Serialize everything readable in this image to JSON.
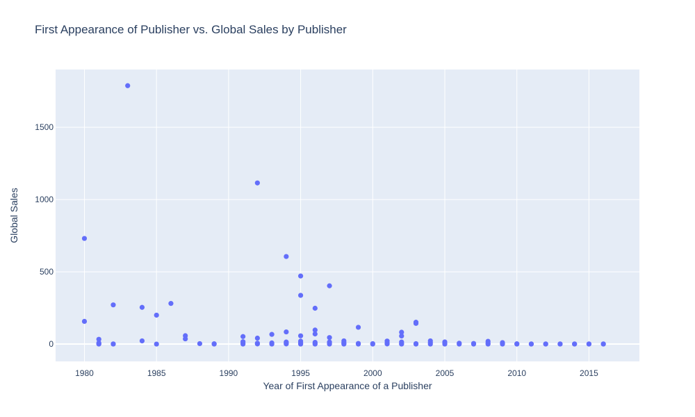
{
  "chart_data": {
    "type": "scatter",
    "title": "First Appearance of Publisher vs. Global Sales by Publisher",
    "xlabel": "Year of First Appearance of a Publisher",
    "ylabel": "Global Sales",
    "xlim": [
      1978,
      2018.5
    ],
    "ylim": [
      -120,
      1900
    ],
    "x_ticks": [
      1980,
      1985,
      1990,
      1995,
      2000,
      2005,
      2010,
      2015
    ],
    "y_ticks": [
      0,
      500,
      1000,
      1500
    ],
    "grid": true,
    "legend": "none",
    "colors": {
      "marker": "#636efa",
      "plot_bg": "#e5ecf6",
      "grid": "#ffffff",
      "text": "#2a3f5f"
    },
    "points": [
      {
        "x": 1980,
        "y": 731
      },
      {
        "x": 1980,
        "y": 157
      },
      {
        "x": 1981,
        "y": 33
      },
      {
        "x": 1981,
        "y": 8
      },
      {
        "x": 1981,
        "y": 2
      },
      {
        "x": 1981,
        "y": 0
      },
      {
        "x": 1982,
        "y": 271
      },
      {
        "x": 1982,
        "y": 1
      },
      {
        "x": 1982,
        "y": 0
      },
      {
        "x": 1983,
        "y": 1788
      },
      {
        "x": 1984,
        "y": 254
      },
      {
        "x": 1984,
        "y": 22
      },
      {
        "x": 1985,
        "y": 200
      },
      {
        "x": 1985,
        "y": 0
      },
      {
        "x": 1986,
        "y": 281
      },
      {
        "x": 1987,
        "y": 58
      },
      {
        "x": 1987,
        "y": 36
      },
      {
        "x": 1988,
        "y": 3
      },
      {
        "x": 1989,
        "y": 2
      },
      {
        "x": 1989,
        "y": 0
      },
      {
        "x": 1991,
        "y": 52
      },
      {
        "x": 1991,
        "y": 16
      },
      {
        "x": 1991,
        "y": 6
      },
      {
        "x": 1991,
        "y": 0
      },
      {
        "x": 1992,
        "y": 1115
      },
      {
        "x": 1992,
        "y": 41
      },
      {
        "x": 1992,
        "y": 6
      },
      {
        "x": 1992,
        "y": 1
      },
      {
        "x": 1993,
        "y": 67
      },
      {
        "x": 1993,
        "y": 8
      },
      {
        "x": 1993,
        "y": 0
      },
      {
        "x": 1994,
        "y": 606
      },
      {
        "x": 1994,
        "y": 84
      },
      {
        "x": 1994,
        "y": 14
      },
      {
        "x": 1994,
        "y": 7
      },
      {
        "x": 1994,
        "y": 1
      },
      {
        "x": 1995,
        "y": 471
      },
      {
        "x": 1995,
        "y": 337
      },
      {
        "x": 1995,
        "y": 57
      },
      {
        "x": 1995,
        "y": 20
      },
      {
        "x": 1995,
        "y": 10
      },
      {
        "x": 1995,
        "y": 3
      },
      {
        "x": 1995,
        "y": 0
      },
      {
        "x": 1996,
        "y": 248
      },
      {
        "x": 1996,
        "y": 97
      },
      {
        "x": 1996,
        "y": 70
      },
      {
        "x": 1996,
        "y": 12
      },
      {
        "x": 1996,
        "y": 5
      },
      {
        "x": 1996,
        "y": 0
      },
      {
        "x": 1997,
        "y": 403
      },
      {
        "x": 1997,
        "y": 45
      },
      {
        "x": 1997,
        "y": 14
      },
      {
        "x": 1997,
        "y": 5
      },
      {
        "x": 1997,
        "y": 0
      },
      {
        "x": 1998,
        "y": 22
      },
      {
        "x": 1998,
        "y": 11
      },
      {
        "x": 1998,
        "y": 4
      },
      {
        "x": 1998,
        "y": 0
      },
      {
        "x": 1999,
        "y": 116
      },
      {
        "x": 1999,
        "y": 4
      },
      {
        "x": 1999,
        "y": 0
      },
      {
        "x": 2000,
        "y": 3
      },
      {
        "x": 2000,
        "y": 0
      },
      {
        "x": 2001,
        "y": 21
      },
      {
        "x": 2001,
        "y": 8
      },
      {
        "x": 2001,
        "y": 1
      },
      {
        "x": 2002,
        "y": 82
      },
      {
        "x": 2002,
        "y": 56
      },
      {
        "x": 2002,
        "y": 14
      },
      {
        "x": 2002,
        "y": 3
      },
      {
        "x": 2002,
        "y": 0
      },
      {
        "x": 2003,
        "y": 151
      },
      {
        "x": 2003,
        "y": 143
      },
      {
        "x": 2003,
        "y": 3
      },
      {
        "x": 2003,
        "y": 0
      },
      {
        "x": 2004,
        "y": 22
      },
      {
        "x": 2004,
        "y": 9
      },
      {
        "x": 2004,
        "y": 0
      },
      {
        "x": 2005,
        "y": 15
      },
      {
        "x": 2005,
        "y": 6
      },
      {
        "x": 2005,
        "y": 0
      },
      {
        "x": 2006,
        "y": 6
      },
      {
        "x": 2006,
        "y": 0
      },
      {
        "x": 2007,
        "y": 4
      },
      {
        "x": 2007,
        "y": 0
      },
      {
        "x": 2008,
        "y": 19
      },
      {
        "x": 2008,
        "y": 6
      },
      {
        "x": 2008,
        "y": 0
      },
      {
        "x": 2009,
        "y": 10
      },
      {
        "x": 2009,
        "y": 2
      },
      {
        "x": 2009,
        "y": 0
      },
      {
        "x": 2010,
        "y": 2
      },
      {
        "x": 2010,
        "y": 0
      },
      {
        "x": 2011,
        "y": 1
      },
      {
        "x": 2011,
        "y": 0
      },
      {
        "x": 2012,
        "y": 1
      },
      {
        "x": 2012,
        "y": 0
      },
      {
        "x": 2013,
        "y": 1
      },
      {
        "x": 2013,
        "y": 0
      },
      {
        "x": 2014,
        "y": 1
      },
      {
        "x": 2014,
        "y": 0
      },
      {
        "x": 2015,
        "y": 1
      },
      {
        "x": 2015,
        "y": 0
      },
      {
        "x": 2016,
        "y": 1
      },
      {
        "x": 2016,
        "y": 0
      }
    ]
  }
}
